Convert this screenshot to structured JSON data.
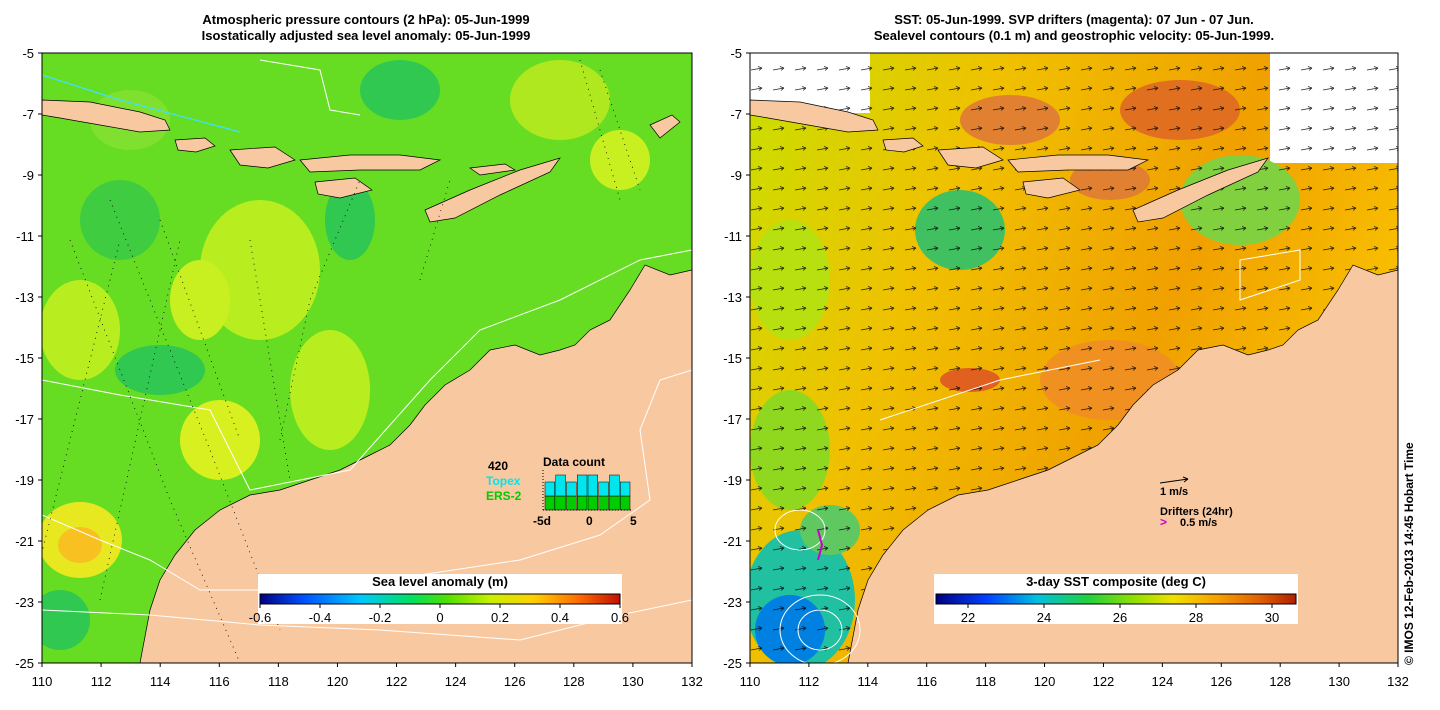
{
  "left_panel": {
    "title_line1": "Atmospheric pressure contours (2 hPa): 05-Jun-1999",
    "title_line2": "Isostatically adjusted sea level anomaly: 05-Jun-1999",
    "colorbar_label": "Sea level anomaly (m)",
    "colorbar_ticks": [
      "-0.6",
      "-0.4",
      "-0.2",
      "0",
      "0.2",
      "0.4",
      "0.6"
    ],
    "inset": {
      "title": "Data count",
      "count_label": "420",
      "series1": "Topex",
      "series2": "ERS-2",
      "x_ticks": [
        "-5d",
        "0",
        "5"
      ],
      "topex_counts": [
        2,
        3,
        2,
        3,
        3,
        2,
        3,
        2
      ],
      "ers2_counts": [
        2,
        2,
        2,
        2,
        2,
        2,
        2,
        2
      ],
      "series1_color": "#00e5ee",
      "series2_color": "#00cc00"
    }
  },
  "right_panel": {
    "title_line1": "SST: 05-Jun-1999. SVP drifters (magenta): 07 Jun - 07 Jun.",
    "title_line2": "Sealevel contours (0.1 m) and geostrophic velocity: 05-Jun-1999.",
    "colorbar_label": "3-day SST composite (deg C)",
    "colorbar_ticks": [
      "22",
      "24",
      "26",
      "28",
      "30"
    ],
    "legend_velocity": "1 m/s",
    "legend_drifters": "Drifters (24hr)",
    "legend_drifter_speed": "0.5 m/s",
    "drifter_color": "#cc00cc"
  },
  "axes": {
    "x_ticks": [
      "110",
      "112",
      "114",
      "116",
      "118",
      "120",
      "122",
      "124",
      "126",
      "128",
      "130",
      "132"
    ],
    "y_ticks": [
      "-5",
      "-7",
      "-9",
      "-11",
      "-13",
      "-15",
      "-17",
      "-19",
      "-21",
      "-23",
      "-25"
    ]
  },
  "credit": "© IMOS 12-Feb-2013 14:45 Hobart Time",
  "colors": {
    "land": "#f8c8a0",
    "sla_scale": [
      "#000080",
      "#0050ff",
      "#00c8ff",
      "#00e060",
      "#50e000",
      "#c8f000",
      "#ffd000",
      "#ff7000",
      "#c01000"
    ],
    "sst_scale": [
      "#000080",
      "#0040ff",
      "#00c0e0",
      "#20d040",
      "#90e000",
      "#f0e000",
      "#f8a000",
      "#e06000",
      "#b02000"
    ]
  }
}
